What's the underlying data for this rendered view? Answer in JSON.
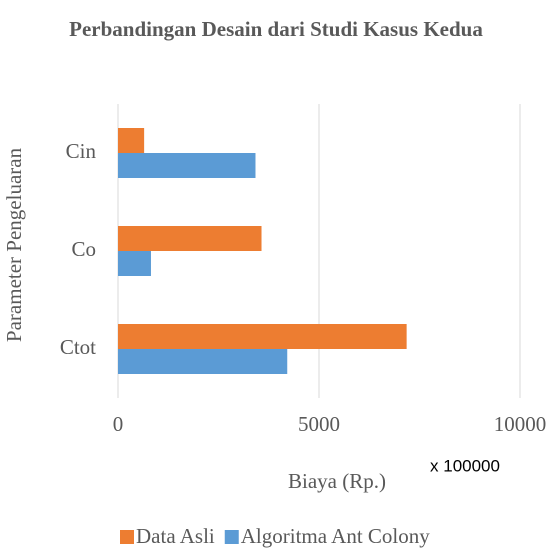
{
  "chart_data": {
    "type": "hbar",
    "title": "Perbandingan Desain dari Studi Kasus Kedua",
    "xlabel": "Biaya (Rp.)",
    "ylabel": "Parameter Pengeluaran",
    "annotation": "x 100000",
    "categories": [
      "Cin",
      "Co",
      "Ctot"
    ],
    "series": [
      {
        "name": "Data Asli",
        "color": "#ed7d31",
        "values": [
          650,
          3570,
          7180
        ]
      },
      {
        "name": "Algoritma Ant Colony",
        "color": "#5b9bd5",
        "values": [
          3420,
          820,
          4210
        ]
      }
    ],
    "xlim": [
      0,
      10000
    ],
    "xticks": [
      0,
      5000,
      10000
    ],
    "grid": true,
    "legend": "bottom"
  }
}
